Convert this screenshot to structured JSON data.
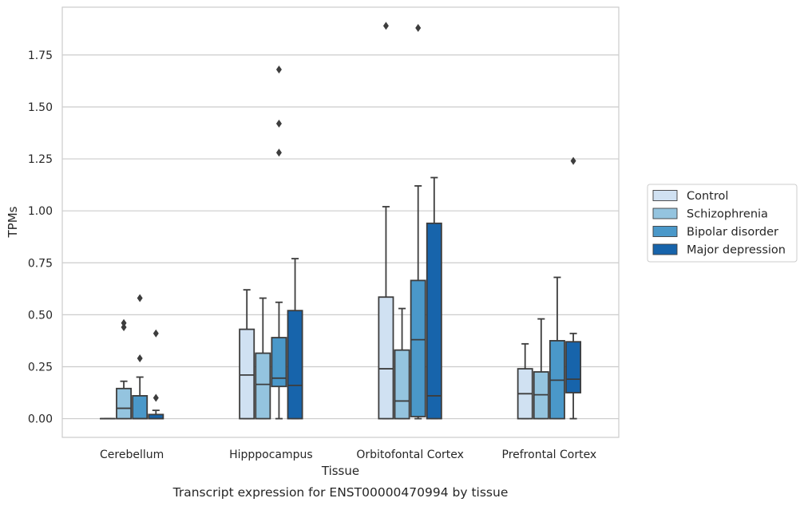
{
  "chart_data": {
    "type": "box",
    "caption": "Transcript expression for ENST00000470994 by tissue",
    "xlabel": "Tissue",
    "ylabel": "TPMs",
    "ylim": [
      -0.09,
      1.98
    ],
    "yticks": [
      0.0,
      0.25,
      0.5,
      0.75,
      1.0,
      1.25,
      1.5,
      1.75
    ],
    "ytick_labels": [
      "0.00",
      "0.25",
      "0.50",
      "0.75",
      "1.00",
      "1.25",
      "1.50",
      "1.75"
    ],
    "grid": "horizontal",
    "legend_position": "right",
    "categories": [
      "Cerebellum",
      "Hipppocampus",
      "Orbitofontal Cortex",
      "Prefrontal Cortex"
    ],
    "series": [
      {
        "name": "Control",
        "color": "#d0e1f2",
        "boxes": [
          {
            "whislo": 0.0,
            "q1": 0.0,
            "med": 0.0,
            "q3": 0.0,
            "whishi": 0.0,
            "fliers": []
          },
          {
            "whislo": 0.0,
            "q1": 0.0,
            "med": 0.21,
            "q3": 0.43,
            "whishi": 0.62,
            "fliers": []
          },
          {
            "whislo": 0.0,
            "q1": 0.0,
            "med": 0.24,
            "q3": 0.585,
            "whishi": 1.02,
            "fliers": [
              1.89
            ]
          },
          {
            "whislo": 0.0,
            "q1": 0.0,
            "med": 0.12,
            "q3": 0.24,
            "whishi": 0.36,
            "fliers": []
          }
        ]
      },
      {
        "name": "Schizophrenia",
        "color": "#94c4df",
        "boxes": [
          {
            "whislo": 0.0,
            "q1": 0.0,
            "med": 0.05,
            "q3": 0.145,
            "whishi": 0.18,
            "fliers": [
              0.44,
              0.46
            ]
          },
          {
            "whislo": 0.0,
            "q1": 0.0,
            "med": 0.165,
            "q3": 0.315,
            "whishi": 0.58,
            "fliers": []
          },
          {
            "whislo": 0.0,
            "q1": 0.0,
            "med": 0.085,
            "q3": 0.33,
            "whishi": 0.53,
            "fliers": []
          },
          {
            "whislo": 0.0,
            "q1": 0.0,
            "med": 0.115,
            "q3": 0.225,
            "whishi": 0.48,
            "fliers": []
          }
        ]
      },
      {
        "name": "Bipolar disorder",
        "color": "#4a98c9",
        "boxes": [
          {
            "whislo": 0.0,
            "q1": 0.0,
            "med": 0.0,
            "q3": 0.11,
            "whishi": 0.2,
            "fliers": [
              0.29,
              0.58
            ]
          },
          {
            "whislo": 0.0,
            "q1": 0.155,
            "med": 0.195,
            "q3": 0.39,
            "whishi": 0.56,
            "fliers": [
              1.28,
              1.42,
              1.68
            ]
          },
          {
            "whislo": 0.0,
            "q1": 0.01,
            "med": 0.38,
            "q3": 0.665,
            "whishi": 1.12,
            "fliers": [
              1.88
            ]
          },
          {
            "whislo": 0.0,
            "q1": 0.0,
            "med": 0.185,
            "q3": 0.375,
            "whishi": 0.68,
            "fliers": []
          }
        ]
      },
      {
        "name": "Major depression",
        "color": "#1764ab",
        "boxes": [
          {
            "whislo": 0.0,
            "q1": 0.0,
            "med": 0.0,
            "q3": 0.02,
            "whishi": 0.04,
            "fliers": [
              0.1,
              0.41
            ]
          },
          {
            "whislo": 0.0,
            "q1": 0.0,
            "med": 0.16,
            "q3": 0.52,
            "whishi": 0.77,
            "fliers": []
          },
          {
            "whislo": 0.0,
            "q1": 0.0,
            "med": 0.11,
            "q3": 0.94,
            "whishi": 1.16,
            "fliers": []
          },
          {
            "whislo": 0.0,
            "q1": 0.125,
            "med": 0.19,
            "q3": 0.37,
            "whishi": 0.41,
            "fliers": [
              1.24
            ]
          }
        ]
      }
    ]
  }
}
